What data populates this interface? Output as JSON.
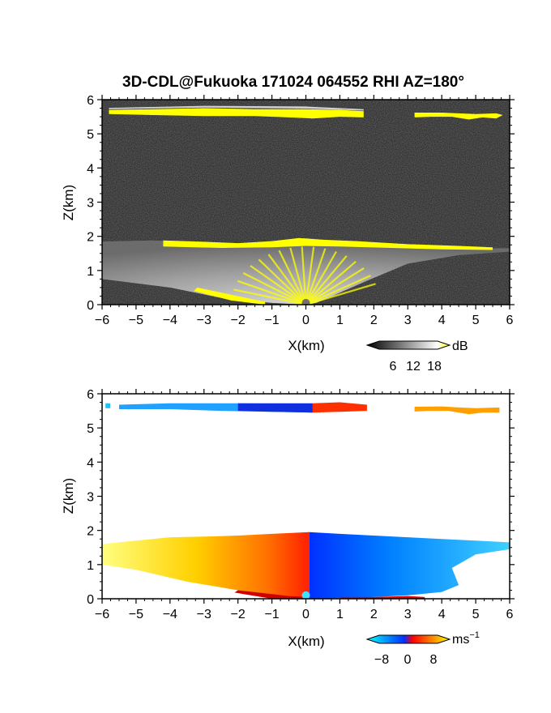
{
  "figure": {
    "title": "3D-CDL@Fukuoka 171024 064552 RHI AZ=180°"
  },
  "chart_data": [
    {
      "type": "heatmap",
      "panel": "backscatter",
      "xlabel": "X(km)",
      "ylabel": "Z(km)",
      "xlim": [
        -6,
        6
      ],
      "ylim": [
        0,
        6
      ],
      "x_ticks": [
        "−6",
        "−5",
        "−4",
        "−3",
        "−2",
        "−1",
        "0",
        "1",
        "2",
        "3",
        "4",
        "5",
        "6"
      ],
      "y_ticks": [
        "0",
        "1",
        "2",
        "3",
        "4",
        "5",
        "6"
      ],
      "colorbar": {
        "unit": "dB",
        "ticks": [
          "6",
          "12",
          "18"
        ],
        "range": [
          0,
          20
        ],
        "colors": [
          "#000000",
          "#ffffff",
          "#ffff00"
        ]
      },
      "background": "#1c1c1c",
      "features": [
        {
          "name": "cloud-layer-upper-left",
          "x": [
            -5.8,
            1.7
          ],
          "z": [
            5.4,
            5.7
          ]
        },
        {
          "name": "cloud-layer-upper-right",
          "x": [
            3.2,
            5.8
          ],
          "z": [
            5.4,
            5.6
          ]
        },
        {
          "name": "boundary-layer-top",
          "x": [
            -6,
            6
          ],
          "z": [
            1.6,
            1.9
          ]
        }
      ]
    },
    {
      "type": "heatmap",
      "panel": "doppler-velocity",
      "xlabel": "X(km)",
      "ylabel": "Z(km)",
      "xlim": [
        -6,
        6
      ],
      "ylim": [
        0,
        6
      ],
      "x_ticks": [
        "−6",
        "−5",
        "−4",
        "−3",
        "−2",
        "−1",
        "0",
        "1",
        "2",
        "3",
        "4",
        "5",
        "6"
      ],
      "y_ticks": [
        "0",
        "1",
        "2",
        "3",
        "4",
        "5",
        "6"
      ],
      "colorbar": {
        "unit": "ms",
        "unit_sup": "−1",
        "ticks": [
          "−8",
          "0",
          "8"
        ],
        "range": [
          -10,
          10
        ],
        "colors": [
          "#00ffff",
          "#0033ff",
          "#ff0000",
          "#ffff00"
        ]
      },
      "features": [
        {
          "name": "upper-layer-negative",
          "x": [
            -5.5,
            0.2
          ],
          "z": [
            5.45,
            5.75
          ],
          "v": [
            -6,
            -9
          ]
        },
        {
          "name": "upper-layer-positive",
          "x": [
            0.2,
            1.8
          ],
          "z": [
            5.45,
            5.75
          ],
          "v": [
            1,
            4
          ]
        },
        {
          "name": "upper-layer-right",
          "x": [
            3.2,
            5.7
          ],
          "z": [
            5.4,
            5.6
          ],
          "v": [
            6,
            6
          ]
        },
        {
          "name": "boundary-layer-left",
          "x": [
            -6,
            0.1
          ],
          "z": [
            0,
            1.9
          ],
          "v": [
            8,
            1
          ]
        },
        {
          "name": "boundary-layer-right",
          "x": [
            0.1,
            6
          ],
          "z": [
            0,
            1.9
          ],
          "v": [
            -1,
            -8
          ]
        }
      ]
    }
  ]
}
